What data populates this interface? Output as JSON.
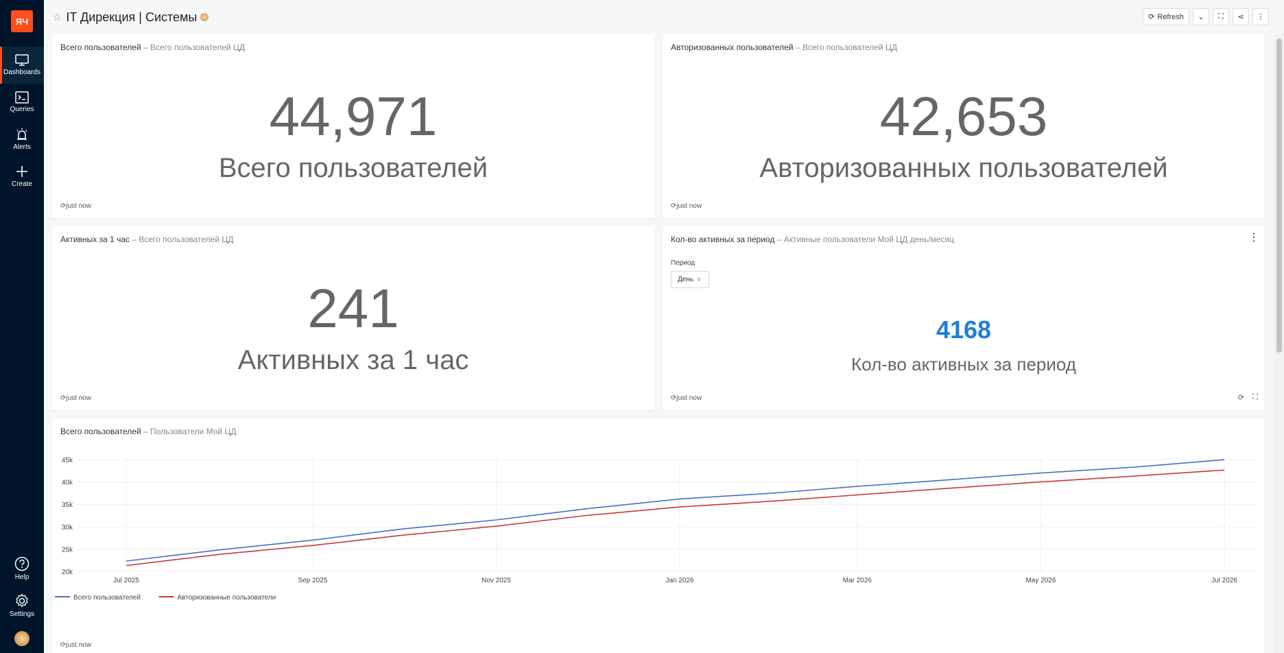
{
  "sidebar": {
    "items": [
      {
        "label": "Dashboards",
        "icon": "monitor-icon"
      },
      {
        "label": "Queries",
        "icon": "terminal-icon"
      },
      {
        "label": "Alerts",
        "icon": "alarm-icon"
      },
      {
        "label": "Create",
        "icon": "plus-icon"
      }
    ],
    "bottom": [
      {
        "label": "Help",
        "icon": "help-icon"
      },
      {
        "label": "Settings",
        "icon": "settings-icon"
      }
    ]
  },
  "header": {
    "title": "IT Дирекция | Системы",
    "refresh_label": "Refresh"
  },
  "widgets": {
    "total": {
      "title": "Всего пользователей",
      "subtitle": "Всего пользователей ЦД",
      "value": "44,971",
      "label": "Всего пользователей",
      "updated": "just now"
    },
    "authorized": {
      "title": "Авторизованных пользователей",
      "subtitle": "Всего пользователей ЦД",
      "value": "42,653",
      "label": "Авторизованных пользователей",
      "updated": "just now"
    },
    "active_hour": {
      "title": "Активных за 1 час",
      "subtitle": "Всего пользователей ЦД",
      "value": "241",
      "label": "Активных за 1 час",
      "updated": "just now"
    },
    "active_period": {
      "title": "Кол-во активных за период",
      "subtitle": "Активные пользователи Мой ЦД день/месяц",
      "param_label": "Период",
      "param_value": "День",
      "value": "4168",
      "label": "Кол-во активных за период",
      "updated": "just now"
    },
    "chart": {
      "title": "Всего пользователей",
      "subtitle": "Пользователи Мой ЦД",
      "updated": "just now"
    }
  },
  "chart_data": {
    "type": "line",
    "x": [
      "2025-07-01",
      "2025-08-01",
      "2025-09-01",
      "2025-10-01",
      "2025-11-01",
      "2025-12-01",
      "2026-01-01",
      "2026-02-01",
      "2026-03-01",
      "2026-04-01",
      "2026-05-01",
      "2026-06-01",
      "2026-07-01"
    ],
    "x_ticks": [
      "Jul 2025",
      "Sep 2025",
      "Nov 2025",
      "Jan 2026",
      "Mar 2026",
      "May 2026",
      "Jul 2026"
    ],
    "y_ticks": [
      "20k",
      "25k",
      "30k",
      "35k",
      "40k",
      "45k"
    ],
    "ylim": [
      20000,
      45000
    ],
    "series": [
      {
        "name": "Всего пользователей",
        "color": "#4a6fc1",
        "values": [
          22300,
          24800,
          27000,
          29500,
          31500,
          34000,
          36200,
          37500,
          39000,
          40500,
          42000,
          43300,
          44971
        ]
      },
      {
        "name": "Авторизованные пользователи",
        "color": "#c8383c",
        "values": [
          21300,
          23800,
          25800,
          28100,
          30100,
          32500,
          34400,
          35700,
          37100,
          38600,
          40000,
          41300,
          42653
        ]
      }
    ],
    "grid": true,
    "legend": "bottom-left"
  },
  "colors": {
    "accent": "#ff4d1c",
    "sidebar_bg": "#001529",
    "period_value": "#1e7fd6"
  }
}
